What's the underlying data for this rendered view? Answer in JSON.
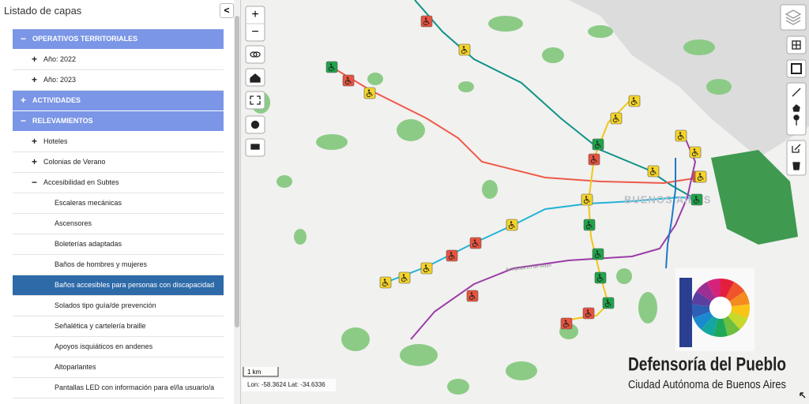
{
  "panel": {
    "title": "Listado de capas",
    "collapse": "<",
    "items": [
      {
        "label": "OPERATIVOS TERRITORIALES",
        "toggle": "−",
        "children": [
          {
            "label": "Año: 2022",
            "toggle": "+"
          },
          {
            "label": "Año: 2023",
            "toggle": "+"
          }
        ]
      },
      {
        "label": "ACTIVIDADES",
        "toggle": "+"
      },
      {
        "label": "RELEVAMIENTOS",
        "toggle": "−",
        "children": [
          {
            "label": "Hoteles",
            "toggle": "+"
          },
          {
            "label": "Colonias de Verano",
            "toggle": "+"
          },
          {
            "label": "Accesibilidad en Subtes",
            "toggle": "−",
            "children": [
              {
                "label": "Escaleras mecánicas"
              },
              {
                "label": "Ascensores"
              },
              {
                "label": "Boleterías adaptadas"
              },
              {
                "label": "Baños de hombres y mujeres"
              },
              {
                "label": "Baños accesibles para personas con discapacidad",
                "selected": true
              },
              {
                "label": "Solados tipo guía/de prevención"
              },
              {
                "label": "Señalética y cartelería braille"
              },
              {
                "label": "Apoyos isquiáticos en andenes"
              },
              {
                "label": "Altoparlantes"
              },
              {
                "label": "Pantallas LED con información para el/la usuario/a"
              }
            ]
          }
        ]
      }
    ]
  },
  "map": {
    "zoom_in": "+",
    "zoom_out": "−",
    "scale_label": "1 km",
    "coordinates": "Lon: -58.3624 Lat: -34.6336",
    "city_label": "BUENOS AIRES",
    "road_label": "Autopista 25 de Mayo"
  },
  "logo": {
    "title": "Defensoría del Pueblo",
    "subtitle": "Ciudad Autónoma de Buenos Aires"
  }
}
